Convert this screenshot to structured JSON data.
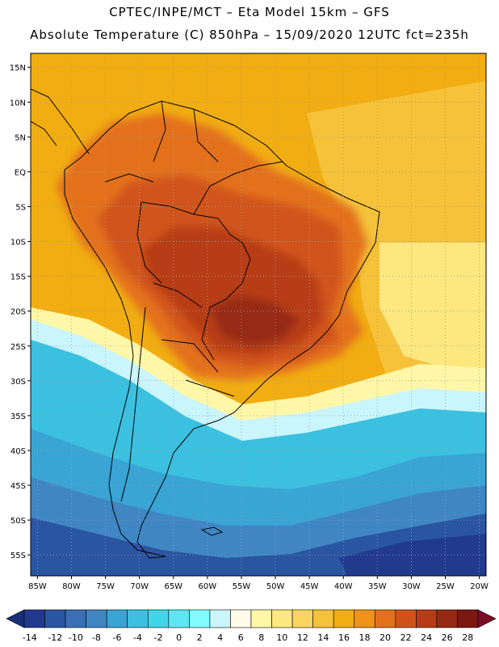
{
  "header": {
    "line1": "CPTEC/INPE/MCT –  Eta Model 15km – GFS",
    "line2": "Absolute Temperature (C) 850hPa – 15/09/2020 12UTC fct=235h"
  },
  "map": {
    "lat_range": [
      -58,
      17
    ],
    "lon_range": [
      -86,
      -19
    ],
    "lat_ticks": [
      15,
      10,
      5,
      0,
      -5,
      -10,
      -15,
      -20,
      -25,
      -30,
      -35,
      -40,
      -45,
      -50,
      -55
    ],
    "lat_labels": [
      "15N",
      "10N",
      "5N",
      "EQ",
      "5S",
      "10S",
      "15S",
      "20S",
      "25S",
      "30S",
      "35S",
      "40S",
      "45S",
      "50S",
      "55S"
    ],
    "lon_ticks": [
      -85,
      -80,
      -75,
      -70,
      -65,
      -60,
      -55,
      -50,
      -45,
      -40,
      -35,
      -30,
      -25,
      -20
    ],
    "lon_labels": [
      "85W",
      "80W",
      "75W",
      "70W",
      "65W",
      "60W",
      "55W",
      "50W",
      "45W",
      "40W",
      "35W",
      "30W",
      "25W",
      "20W"
    ]
  },
  "colorbar": {
    "labels": [
      "-14",
      "-12",
      "-10",
      "-8",
      "-6",
      "-4",
      "-2",
      "0",
      "2",
      "4",
      "6",
      "8",
      "10",
      "12",
      "14",
      "16",
      "18",
      "20",
      "22",
      "24",
      "26",
      "28"
    ],
    "colors": [
      "#213a8e",
      "#2a55a0",
      "#3a6fb3",
      "#3f86c3",
      "#3aa4d4",
      "#3cc0e0",
      "#40d6ea",
      "#5ce7f2",
      "#80fbff",
      "#c9f5fb",
      "#fffbe8",
      "#fff7a8",
      "#fde77f",
      "#fad55f",
      "#f5c23a",
      "#f1ad12",
      "#ef9316",
      "#e3711a",
      "#d0541a",
      "#b73c15",
      "#962913",
      "#7b1812"
    ],
    "under_color": "#18307a",
    "over_color": "#7a0e24"
  },
  "temperature_bands": {
    "ocean_north": "#f1ad12",
    "ocean_east": "#f5c23a",
    "ocean_east_warm": "#fde77f",
    "amazon": "#e3711a",
    "central": "#d0541a",
    "core": "#b73c15",
    "hot_spot": "#962913",
    "transition": "#fff7a8",
    "pale": "#c9f5fb",
    "cool": "#3cc0e0",
    "cold": "#3aa4d4",
    "colder": "#3f86c3",
    "coldest": "#2a55a0",
    "deep": "#213a8e"
  }
}
